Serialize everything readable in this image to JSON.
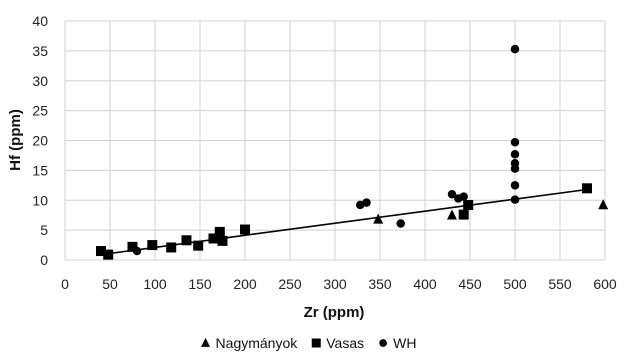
{
  "chart_data": {
    "type": "scatter",
    "title": "",
    "xlabel": "Zr (ppm)",
    "ylabel": "Hf (ppm)",
    "xlim": [
      0,
      600
    ],
    "ylim": [
      0,
      40
    ],
    "xticks": [
      0,
      50,
      100,
      150,
      200,
      250,
      300,
      350,
      400,
      450,
      500,
      550,
      600
    ],
    "yticks": [
      0,
      5,
      10,
      15,
      20,
      25,
      30,
      35,
      40
    ],
    "grid": true,
    "legend_position": "bottom",
    "series": [
      {
        "name": "Nagymányok",
        "marker": "triangle",
        "color": "#000000",
        "points": [
          [
            348,
            6.8
          ],
          [
            430,
            7.5
          ],
          [
            598,
            9.2
          ]
        ]
      },
      {
        "name": "Vasas",
        "marker": "square",
        "color": "#000000",
        "points": [
          [
            40,
            1.5
          ],
          [
            48,
            0.9
          ],
          [
            75,
            2.2
          ],
          [
            97,
            2.5
          ],
          [
            118,
            2.1
          ],
          [
            135,
            3.3
          ],
          [
            148,
            2.4
          ],
          [
            165,
            3.6
          ],
          [
            172,
            4.7
          ],
          [
            175,
            3.2
          ],
          [
            200,
            5.1
          ],
          [
            443,
            7.6
          ],
          [
            448,
            9.2
          ],
          [
            580,
            12.0
          ]
        ]
      },
      {
        "name": "WH",
        "marker": "circle",
        "color": "#000000",
        "points": [
          [
            80,
            1.5
          ],
          [
            328,
            9.2
          ],
          [
            335,
            9.6
          ],
          [
            373,
            6.1
          ],
          [
            430,
            11.0
          ],
          [
            437,
            10.3
          ],
          [
            443,
            10.6
          ],
          [
            500,
            35.3
          ],
          [
            500,
            19.7
          ],
          [
            500,
            17.7
          ],
          [
            500,
            16.2
          ],
          [
            500,
            15.3
          ],
          [
            500,
            12.5
          ],
          [
            500,
            10.1
          ]
        ]
      }
    ],
    "trendline": {
      "type": "linear",
      "color": "#000000",
      "x": [
        40,
        580
      ],
      "y": [
        0.9,
        11.8
      ]
    }
  }
}
